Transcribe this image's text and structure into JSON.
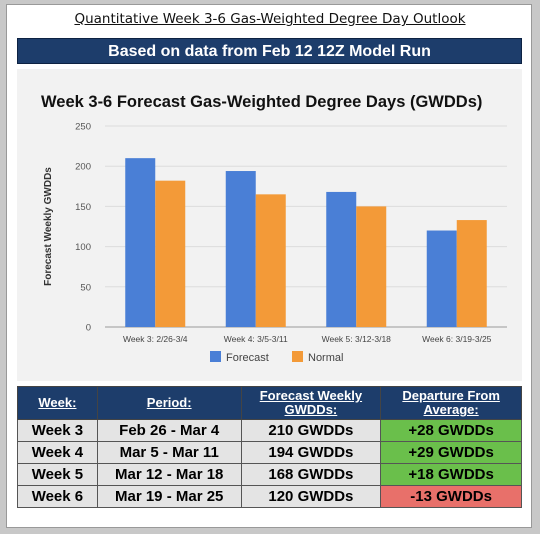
{
  "title": "Quantitative Week 3-6 Gas-Weighted Degree Day Outlook",
  "banner": "Based on data from Feb 12 12Z Model Run",
  "chart_data": {
    "type": "bar",
    "title": "Week 3-6 Forecast Gas-Weighted Degree Days (GWDDs)",
    "ylabel": "Forecast Weekly GWDDs",
    "xlabel": "",
    "ylim": [
      0,
      250
    ],
    "yticks": [
      0,
      50,
      100,
      150,
      200,
      250
    ],
    "grid": true,
    "legend": "bottom",
    "categories": [
      "Week 3: 2/26-3/4",
      "Week 4: 3/5-3/11",
      "Week 5: 3/12-3/18",
      "Week 6: 3/19-3/25"
    ],
    "series": [
      {
        "name": "Forecast",
        "color": "#4a7fd6",
        "values": [
          210,
          194,
          168,
          120
        ]
      },
      {
        "name": "Normal",
        "color": "#f39a38",
        "values": [
          182,
          165,
          150,
          133
        ]
      }
    ]
  },
  "table": {
    "headers": [
      "Week:",
      "Period:",
      "Forecast Weekly GWDDs:",
      "Departure From Average:"
    ],
    "rows": [
      {
        "week": "Week 3",
        "period": "Feb 26 - Mar 4",
        "gwdd": "210 GWDDs",
        "departure": "+28 GWDDs",
        "status": "pos"
      },
      {
        "week": "Week 4",
        "period": "Mar 5 - Mar 11",
        "gwdd": "194 GWDDs",
        "departure": "+29 GWDDs",
        "status": "pos"
      },
      {
        "week": "Week 5",
        "period": "Mar 12 - Mar 18",
        "gwdd": "168 GWDDs",
        "departure": "+18 GWDDs",
        "status": "pos"
      },
      {
        "week": "Week 6",
        "period": "Mar 19 - Mar 25",
        "gwdd": "120 GWDDs",
        "departure": "-13 GWDDs",
        "status": "neg"
      }
    ]
  },
  "colors": {
    "banner": "#1d3d6b",
    "positive": "#6abf4b",
    "negative": "#e8706a"
  }
}
